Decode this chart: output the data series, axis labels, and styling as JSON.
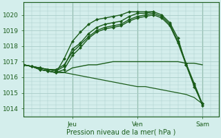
{
  "xlabel": "Pression niveau de la mer( hPa )",
  "bg_color": "#d4eeec",
  "grid_color": "#a8ccc8",
  "line_color": "#1a5c1a",
  "ylim": [
    1013.5,
    1020.8
  ],
  "xlim": [
    0,
    72
  ],
  "yticks": [
    1014,
    1015,
    1016,
    1017,
    1018,
    1019,
    1020
  ],
  "xtick_positions": [
    18,
    42,
    66
  ],
  "xtick_labels": [
    "Jeu",
    "Ven",
    "Sam"
  ],
  "vline_positions": [
    18,
    42,
    66
  ],
  "series": [
    {
      "x": [
        0,
        3,
        6,
        9,
        12,
        15,
        18,
        21,
        24,
        27,
        30,
        33,
        36,
        39,
        42,
        45,
        48,
        51,
        54,
        57,
        60,
        63,
        66
      ],
      "y": [
        1016.8,
        1016.7,
        1016.6,
        1016.5,
        1016.4,
        1016.7,
        1017.8,
        1018.2,
        1018.8,
        1019.2,
        1019.4,
        1019.5,
        1019.6,
        1019.9,
        1020.1,
        1020.1,
        1020.2,
        1020.0,
        1019.5,
        1018.5,
        1016.8,
        1015.5,
        1014.2
      ],
      "marker": "D",
      "ms": 2.5,
      "lw": 1.0
    },
    {
      "x": [
        0,
        3,
        6,
        9,
        12,
        15,
        18,
        21,
        24,
        27,
        30,
        33,
        36,
        39,
        42,
        45,
        48,
        51,
        54,
        57,
        60,
        63,
        66
      ],
      "y": [
        1016.8,
        1016.7,
        1016.5,
        1016.4,
        1016.3,
        1016.5,
        1017.4,
        1017.9,
        1018.5,
        1018.9,
        1019.1,
        1019.2,
        1019.3,
        1019.6,
        1019.8,
        1019.9,
        1020.0,
        1019.8,
        1019.3,
        1018.2,
        1016.8,
        1015.4,
        1014.3
      ],
      "marker": "D",
      "ms": 2.5,
      "lw": 1.0
    },
    {
      "x": [
        0,
        3,
        6,
        9,
        12,
        15,
        18,
        21,
        24,
        27,
        30,
        33,
        36,
        39,
        42,
        45,
        48,
        51,
        54,
        57,
        60,
        63,
        66
      ],
      "y": [
        1016.8,
        1016.7,
        1016.6,
        1016.5,
        1016.5,
        1016.8,
        1017.6,
        1018.1,
        1018.6,
        1019.0,
        1019.2,
        1019.3,
        1019.4,
        1019.7,
        1019.9,
        1020.0,
        1020.1,
        1019.9,
        1019.4,
        1018.3,
        1016.9,
        1015.6,
        1014.3
      ],
      "marker": "D",
      "ms": 2.5,
      "lw": 1.0
    },
    {
      "x": [
        0,
        3,
        6,
        9,
        12,
        15,
        18,
        21,
        24,
        27,
        30,
        33,
        36,
        39,
        42,
        45,
        48
      ],
      "y": [
        1016.8,
        1016.7,
        1016.5,
        1016.4,
        1016.3,
        1017.2,
        1018.3,
        1018.9,
        1019.4,
        1019.7,
        1019.8,
        1019.9,
        1020.0,
        1020.2,
        1020.2,
        1020.2,
        1020.2
      ],
      "marker": "D",
      "ms": 2.5,
      "lw": 1.0
    },
    {
      "x": [
        0,
        3,
        6,
        9,
        12,
        15,
        18,
        21,
        24,
        27,
        30,
        33,
        36,
        39,
        42,
        45,
        48,
        51,
        54,
        57,
        60,
        63,
        66
      ],
      "y": [
        1016.8,
        1016.7,
        1016.5,
        1016.4,
        1016.3,
        1016.3,
        1016.6,
        1016.7,
        1016.8,
        1016.8,
        1016.9,
        1017.0,
        1017.0,
        1017.0,
        1017.0,
        1017.0,
        1017.0,
        1017.0,
        1017.0,
        1017.0,
        1016.9,
        1016.9,
        1016.8
      ],
      "marker": null,
      "ms": 0,
      "lw": 1.0
    },
    {
      "x": [
        0,
        3,
        6,
        9,
        12,
        15,
        18,
        21,
        24,
        27,
        30,
        33,
        36,
        39,
        42,
        45,
        48,
        51,
        54,
        57,
        60,
        63,
        66
      ],
      "y": [
        1016.8,
        1016.7,
        1016.6,
        1016.5,
        1016.4,
        1016.3,
        1016.2,
        1016.1,
        1016.0,
        1015.9,
        1015.8,
        1015.7,
        1015.6,
        1015.5,
        1015.4,
        1015.4,
        1015.3,
        1015.2,
        1015.1,
        1015.0,
        1014.9,
        1014.7,
        1014.3
      ],
      "marker": null,
      "ms": 0,
      "lw": 0.9
    }
  ]
}
